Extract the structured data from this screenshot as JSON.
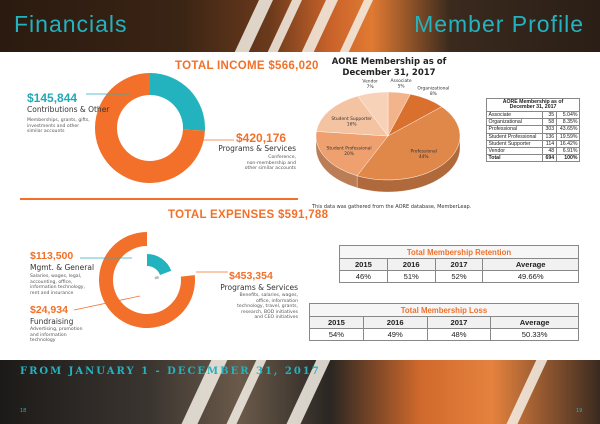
{
  "header": {
    "left_title": "Financials",
    "right_title": "Member Profile"
  },
  "income": {
    "title": "TOTAL INCOME $566,020",
    "items": [
      {
        "amount": "$145,844",
        "label": "Contributions & Other",
        "description": [
          "Memberships, grants, gifts,",
          "investments and other",
          "similar accounts"
        ],
        "value": 145844,
        "color": "#23b3bf"
      },
      {
        "amount": "$420,176",
        "label": "Programs & Services",
        "description": [
          "Conference,",
          "non-membership and",
          "other similar accounts"
        ],
        "value": 420176,
        "color": "#f2702a"
      }
    ]
  },
  "expenses": {
    "title": "TOTAL EXPENSES $591,788",
    "items": [
      {
        "amount": "$113,500",
        "label": "Mgmt. & General",
        "description": [
          "Salaries, wages, legal,",
          "accounting, office,",
          "information technology,",
          "rent and insurance"
        ],
        "value": 113500,
        "color": "#23b3bf"
      },
      {
        "amount": "$24,934",
        "label": "Fundraising",
        "description": [
          "Advertising, promotion",
          "and information",
          "technology"
        ],
        "value": 24934,
        "color": "#bfbfbf"
      },
      {
        "amount": "$453,354",
        "label": "Programs & Services",
        "description": [
          "Benefits, salaries, wages,",
          "office, information",
          "technology, travel, grants,",
          "research, BOD initiatives",
          "and CEO initiatives"
        ],
        "value": 453354,
        "color": "#f2702a"
      }
    ]
  },
  "membership": {
    "chart_title_line1": "AORE Membership as of",
    "chart_title_line2": "December 31, 2017",
    "note": "This data was gathered from the AORE database, MemberLeap.",
    "table_title_line1": "AORE Membership as of",
    "table_title_line2": "December 31, 2017",
    "categories": [
      {
        "name": "Associate",
        "count": "35",
        "pct": "5.04%",
        "pie_label": "Associate",
        "pie_pct": "5%",
        "value": 35,
        "color": "#f3b48c"
      },
      {
        "name": "Organizational",
        "count": "58",
        "pct": "8.35%",
        "pie_label": "Organizational",
        "pie_pct": "8%",
        "value": 58,
        "color": "#d9702e"
      },
      {
        "name": "Professional",
        "count": "303",
        "pct": "43.65%",
        "pie_label": "Professional",
        "pie_pct": "44%",
        "value": 303,
        "color": "#e0874a"
      },
      {
        "name": "Student Professional",
        "count": "136",
        "pct": "19.59%",
        "pie_label": "Student Professional",
        "pie_pct": "20%",
        "value": 136,
        "color": "#eea06e"
      },
      {
        "name": "Student Supporter",
        "count": "114",
        "pct": "16.42%",
        "pie_label": "Student Supporter",
        "pie_pct": "16%",
        "value": 114,
        "color": "#f4c3a1"
      },
      {
        "name": "Vendor",
        "count": "48",
        "pct": "6.91%",
        "pie_label": "Vendor",
        "pie_pct": "7%",
        "value": 48,
        "color": "#f7d2b8"
      }
    ],
    "total": {
      "name": "Total",
      "count": "694",
      "pct": "100%"
    }
  },
  "retention": {
    "title": "Total Membership Retention",
    "headers": [
      "2015",
      "2016",
      "2017",
      "Average"
    ],
    "values": [
      "46%",
      "51%",
      "52%",
      "49.66%"
    ]
  },
  "loss": {
    "title": "Total Membership Loss",
    "headers": [
      "2015",
      "2016",
      "2017",
      "Average"
    ],
    "values": [
      "54%",
      "49%",
      "48%",
      "50.33%"
    ]
  },
  "footer": {
    "period": "FROM JANUARY 1 - DECEMBER 31, 2017",
    "page_left": "18",
    "page_right": "19"
  },
  "chart_data": [
    {
      "type": "pie",
      "title": "TOTAL INCOME $566,020",
      "categories": [
        "Contributions & Other",
        "Programs & Services"
      ],
      "values": [
        145844,
        420176
      ]
    },
    {
      "type": "pie",
      "title": "TOTAL EXPENSES $591,788",
      "categories": [
        "Mgmt. & General",
        "Fundraising",
        "Programs & Services"
      ],
      "values": [
        113500,
        24934,
        453354
      ]
    },
    {
      "type": "pie",
      "title": "AORE Membership as of December 31, 2017",
      "categories": [
        "Associate",
        "Organizational",
        "Professional",
        "Student Professional",
        "Student Supporter",
        "Vendor"
      ],
      "values": [
        35,
        58,
        303,
        136,
        114,
        48
      ]
    }
  ]
}
